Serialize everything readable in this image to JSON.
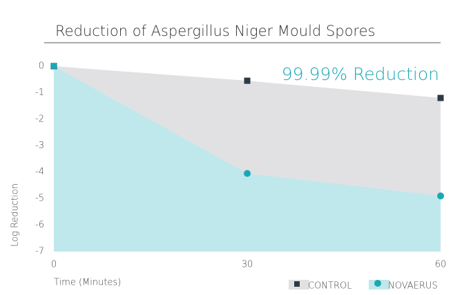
{
  "chart_data": {
    "type": "area",
    "title": "Reduction of Aspergillus Niger Mould Spores",
    "annotation": "99.99% Reduction",
    "x_label": "Time (Minutes)",
    "y_label": "Log Reduction",
    "x": [
      0,
      30,
      60
    ],
    "xlim": [
      0,
      60
    ],
    "xticks": [
      0,
      30,
      60
    ],
    "ylim": [
      -7,
      0
    ],
    "yticks": [
      0,
      -1,
      -2,
      -3,
      -4,
      -5,
      -6,
      -7
    ],
    "series": [
      {
        "name": "CONTROL",
        "color": "#2d3a44",
        "fill": "#e1e1e3",
        "marker": "square",
        "values": [
          0,
          -0.55,
          -1.2
        ]
      },
      {
        "name": "NOVAERUS",
        "color": "#1aa8b4",
        "fill": "#bfe8ec",
        "marker": "circle",
        "values": [
          0,
          -4.05,
          -4.9
        ]
      }
    ]
  }
}
